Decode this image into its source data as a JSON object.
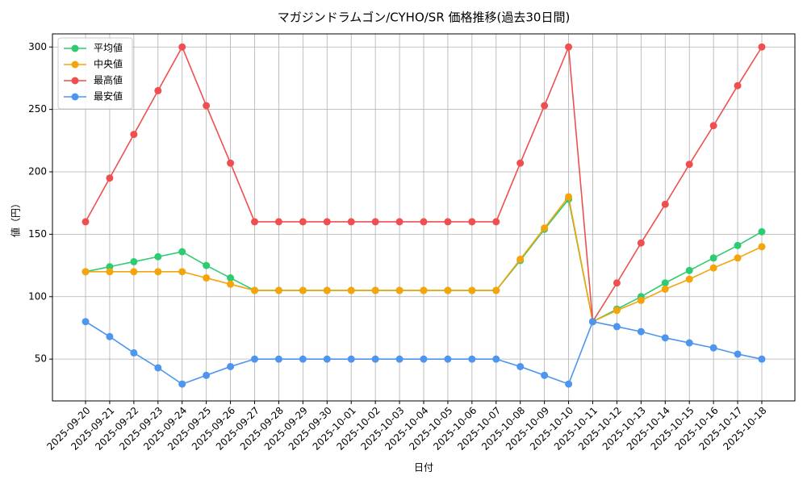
{
  "chart_data": {
    "type": "line",
    "title": "マガジンドラムゴン/CYHO/SR 価格推移(過去30日間)",
    "x_label": "日付",
    "y_label": "値（円）",
    "categories": [
      "2025-09-20",
      "2025-09-21",
      "2025-09-22",
      "2025-09-23",
      "2025-09-24",
      "2025-09-25",
      "2025-09-26",
      "2025-09-27",
      "2025-09-28",
      "2025-09-29",
      "2025-09-30",
      "2025-10-01",
      "2025-10-02",
      "2025-10-03",
      "2025-10-04",
      "2025-10-05",
      "2025-10-06",
      "2025-10-07",
      "2025-10-08",
      "2025-10-09",
      "2025-10-10",
      "2025-10-11",
      "2025-10-12",
      "2025-10-13",
      "2025-10-14",
      "2025-10-15",
      "2025-10-16",
      "2025-10-17",
      "2025-10-18"
    ],
    "series": [
      {
        "name": "平均値",
        "color": "#2ecc71",
        "values": [
          120,
          124,
          128,
          132,
          136,
          125,
          115,
          105,
          105,
          105,
          105,
          105,
          105,
          105,
          105,
          105,
          105,
          105,
          129,
          154,
          178,
          80,
          90,
          100,
          111,
          121,
          131,
          141,
          152
        ]
      },
      {
        "name": "中央値",
        "color": "#f5a40c",
        "values": [
          120,
          120,
          120,
          120,
          120,
          115,
          110,
          105,
          105,
          105,
          105,
          105,
          105,
          105,
          105,
          105,
          105,
          105,
          130,
          155,
          180,
          80,
          89,
          97,
          106,
          114,
          123,
          131,
          140
        ]
      },
      {
        "name": "最高値",
        "color": "#ef4f4f",
        "values": [
          160,
          195,
          230,
          265,
          300,
          253,
          207,
          160,
          160,
          160,
          160,
          160,
          160,
          160,
          160,
          160,
          160,
          160,
          207,
          253,
          300,
          80,
          111,
          143,
          174,
          206,
          237,
          269,
          300
        ]
      },
      {
        "name": "最安値",
        "color": "#4e95ef",
        "values": [
          80,
          68,
          55,
          43,
          30,
          37,
          44,
          50,
          50,
          50,
          50,
          50,
          50,
          50,
          50,
          50,
          50,
          50,
          44,
          37,
          30,
          80,
          76,
          72,
          67,
          63,
          59,
          54,
          50
        ]
      }
    ],
    "ylim": [
      16.5,
      310.5
    ],
    "yticks": [
      50,
      100,
      150,
      200,
      250,
      300
    ],
    "grid": true,
    "legend": "upper-left"
  }
}
